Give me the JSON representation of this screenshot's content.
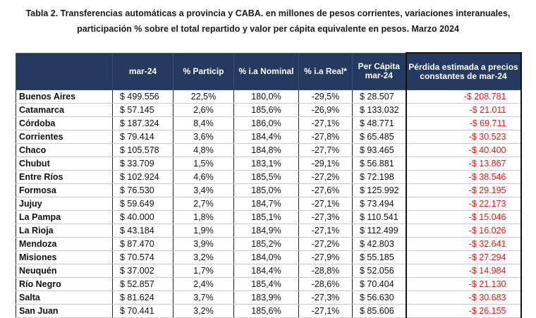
{
  "title": {
    "line1": "Tabla 2. Transferencias automáticas a provincia y CABA. en millones de pesos corrientes, variaciones interanuales,",
    "line2": "participación % sobre el total repartido y valor per cápita equivalente en pesos. Marzo 2024"
  },
  "table": {
    "headers": {
      "provincia": "",
      "mar24": "mar-24",
      "particip": "% Particip",
      "ia_nominal": "% i.a Nominal",
      "ia_real": "% i.a Real*",
      "per_capita": "Per Cápita mar-24",
      "perdida": "Pérdida estimada a precios constantes de mar-24"
    },
    "rows": [
      {
        "provincia": "Buenos Aires",
        "mar24": "$ 499.556",
        "particip": "22,5%",
        "nominal": "180,0%",
        "real": "-29,5%",
        "per_capita": "$ 28.507",
        "perdida": "-$ 208.781"
      },
      {
        "provincia": "Catamarca",
        "mar24": "$ 57.145",
        "particip": "2,6%",
        "nominal": "185,6%",
        "real": "-26,9%",
        "per_capita": "$ 133.032",
        "perdida": "-$ 21.011"
      },
      {
        "provincia": "Córdoba",
        "mar24": "$ 187.324",
        "particip": "8,4%",
        "nominal": "186,0%",
        "real": "-27,1%",
        "per_capita": "$ 48.771",
        "perdida": "-$ 69.711"
      },
      {
        "provincia": "Corrientes",
        "mar24": "$ 79.414",
        "particip": "3,6%",
        "nominal": "184,4%",
        "real": "-27,8%",
        "per_capita": "$ 65.485",
        "perdida": "-$ 30.523"
      },
      {
        "provincia": "Chaco",
        "mar24": "$ 105.578",
        "particip": "4,8%",
        "nominal": "184,8%",
        "real": "-27,7%",
        "per_capita": "$ 93.465",
        "perdida": "-$ 40.400"
      },
      {
        "provincia": "Chubut",
        "mar24": "$ 33.709",
        "particip": "1,5%",
        "nominal": "183,1%",
        "real": "-29,1%",
        "per_capita": "$ 56.881",
        "perdida": "-$ 13.867"
      },
      {
        "provincia": "Entre Ríos",
        "mar24": "$ 102.924",
        "particip": "4,6%",
        "nominal": "185,5%",
        "real": "-27,2%",
        "per_capita": "$ 72.198",
        "perdida": "-$ 38.546"
      },
      {
        "provincia": "Formosa",
        "mar24": "$ 76.530",
        "particip": "3,4%",
        "nominal": "185,0%",
        "real": "-27,6%",
        "per_capita": "$ 125.992",
        "perdida": "-$ 29.195"
      },
      {
        "provincia": "Jujuy",
        "mar24": "$ 59.649",
        "particip": "2,7%",
        "nominal": "184,7%",
        "real": "-27,1%",
        "per_capita": "$ 73.494",
        "perdida": "-$ 22.173"
      },
      {
        "provincia": "La Pampa",
        "mar24": "$ 40.000",
        "particip": "1,8%",
        "nominal": "185,1%",
        "real": "-27,3%",
        "per_capita": "$ 110.541",
        "perdida": "-$ 15.046"
      },
      {
        "provincia": "La Rioja",
        "mar24": "$ 43.184",
        "particip": "1,9%",
        "nominal": "184,9%",
        "real": "-27,1%",
        "per_capita": "$ 112.499",
        "perdida": "-$ 16.026"
      },
      {
        "provincia": "Mendoza",
        "mar24": "$ 87.470",
        "particip": "3,9%",
        "nominal": "185,2%",
        "real": "-27,2%",
        "per_capita": "$ 42.803",
        "perdida": "-$ 32.641"
      },
      {
        "provincia": "Misiones",
        "mar24": "$ 70.574",
        "particip": "3,2%",
        "nominal": "184,0%",
        "real": "-27,9%",
        "per_capita": "$ 55.185",
        "perdida": "-$ 27.294"
      },
      {
        "provincia": "Neuquén",
        "mar24": "$ 37.002",
        "particip": "1,7%",
        "nominal": "184,4%",
        "real": "-28,8%",
        "per_capita": "$ 52.056",
        "perdida": "-$ 14.984"
      },
      {
        "provincia": "Río Negro",
        "mar24": "$ 52.857",
        "particip": "2,4%",
        "nominal": "185,4%",
        "real": "-28,6%",
        "per_capita": "$ 70.404",
        "perdida": "-$ 21.130"
      },
      {
        "provincia": "Salta",
        "mar24": "$ 81.624",
        "particip": "3,7%",
        "nominal": "183,9%",
        "real": "-27,3%",
        "per_capita": "$ 56.630",
        "perdida": "-$ 30.683"
      },
      {
        "provincia": "San Juan",
        "mar24": "$ 70.441",
        "particip": "3,2%",
        "nominal": "185,6%",
        "real": "-27,1%",
        "per_capita": "$ 85.606",
        "perdida": "-$ 26.155"
      }
    ]
  },
  "colors": {
    "header_bg": "#243a5e",
    "header_text": "#ffffff",
    "loss_text": "#e31b1b"
  }
}
